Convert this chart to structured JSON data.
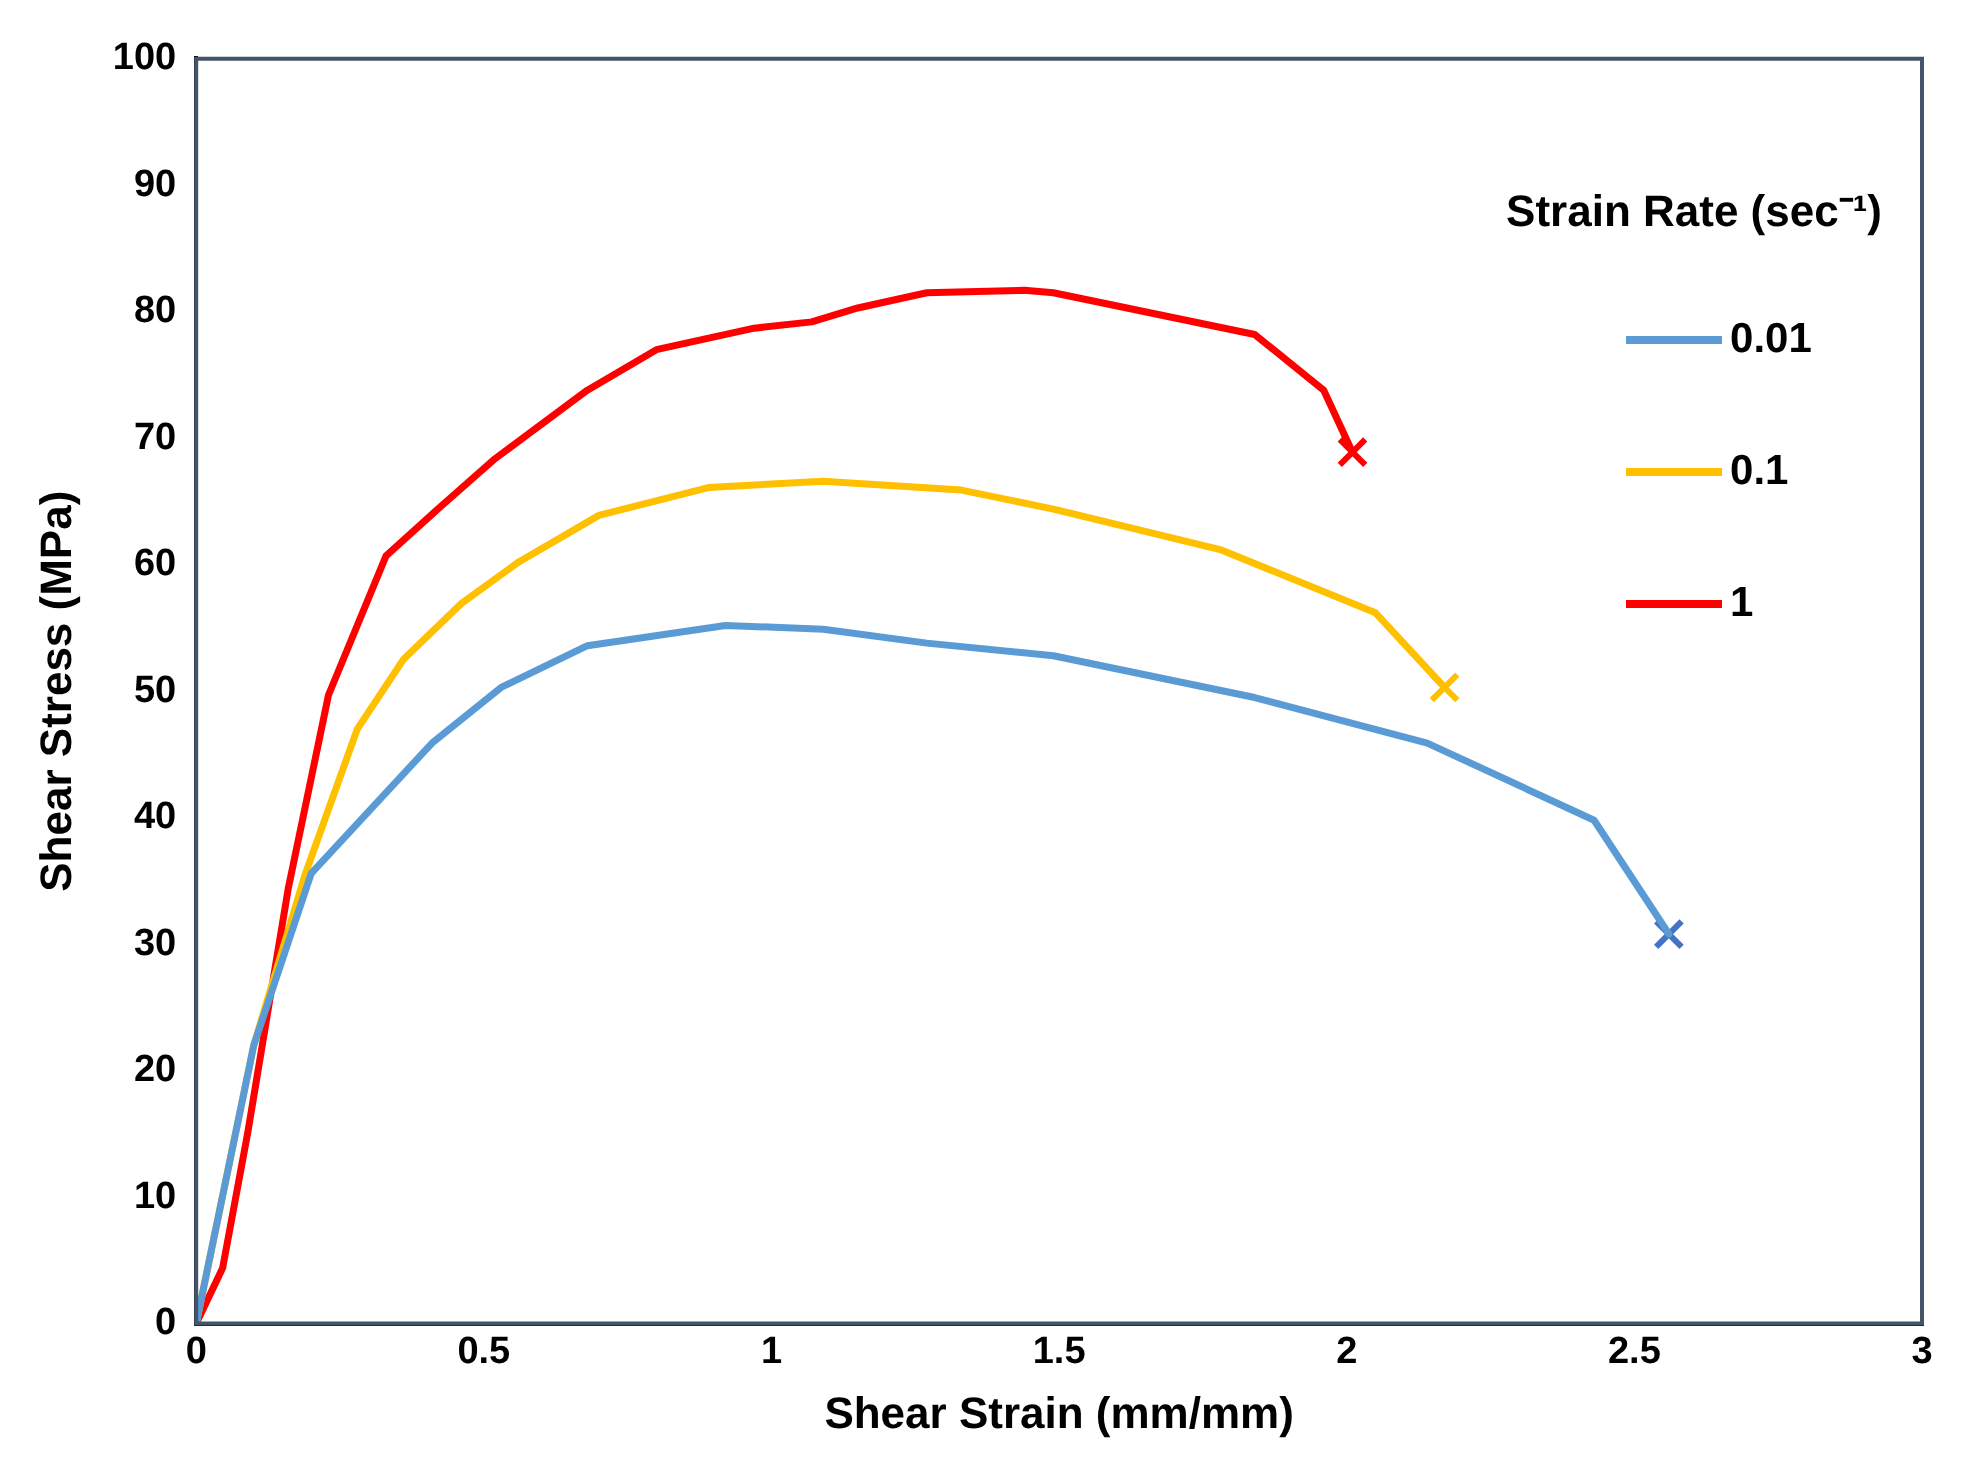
{
  "chart_data": {
    "type": "line",
    "xlabel": "Shear Strain (mm/mm)",
    "ylabel": "Shear Stress (MPa)",
    "legend_title": "Strain Rate (sec⁻¹)",
    "legend": "top right",
    "grid": false,
    "marker": "none",
    "line_style": "solid",
    "xlim": [
      0,
      3
    ],
    "xticks": [
      0,
      0.5,
      1,
      1.5,
      2,
      2.5,
      3
    ],
    "ylim": [
      0,
      100
    ],
    "yticks": [
      0,
      10,
      20,
      30,
      40,
      50,
      60,
      70,
      80,
      90,
      100
    ],
    "series": [
      {
        "name": "0.01",
        "color": "#5b9bd5",
        "x": [
          0,
          0.1,
          0.2,
          0.41,
          0.53,
          0.68,
          0.92,
          1.09,
          1.27,
          1.49,
          1.84,
          2.14,
          2.43,
          2.56
        ],
        "values": [
          0,
          22,
          35.6,
          45.9,
          50.3,
          53.6,
          55.2,
          54.9,
          53.8,
          52.8,
          49.5,
          45.9,
          39.8,
          30.8
        ]
      },
      {
        "name": "0.1",
        "color": "#ffc000",
        "x": [
          0,
          0.1,
          0.19,
          0.28,
          0.36,
          0.46,
          0.56,
          0.7,
          0.89,
          1.09,
          1.33,
          1.49,
          1.78,
          2.05,
          2.17
        ],
        "values": [
          0,
          22,
          35.6,
          47,
          52.5,
          56.9,
          60.2,
          63.9,
          66.1,
          66.6,
          65.9,
          64.4,
          61.2,
          56.2,
          50.3
        ]
      },
      {
        "name": "1",
        "color": "#ff0000",
        "x": [
          0,
          0.046,
          0.09,
          0.16,
          0.23,
          0.33,
          0.42,
          0.52,
          0.68,
          0.8,
          0.97,
          1.07,
          1.15,
          1.27,
          1.44,
          1.49,
          1.84,
          1.96,
          2.01
        ],
        "values": [
          0,
          4.4,
          15.2,
          34.4,
          49.7,
          60.7,
          64.4,
          68.4,
          73.8,
          77,
          78.7,
          79.2,
          80.3,
          81.5,
          81.7,
          81.5,
          78.2,
          73.8,
          68.9
        ]
      },
      {
        "type": "scatter",
        "marker": "cross",
        "color": "#4472c4",
        "x": [
          2.56
        ],
        "values": [
          30.8
        ]
      },
      {
        "type": "scatter",
        "marker": "cross",
        "color": "#ffc000",
        "x": [
          2.17
        ],
        "values": [
          50.3
        ]
      },
      {
        "type": "scatter",
        "marker": "cross",
        "color": "#ff0000",
        "x": [
          2.01
        ],
        "values": [
          68.9
        ]
      }
    ]
  }
}
